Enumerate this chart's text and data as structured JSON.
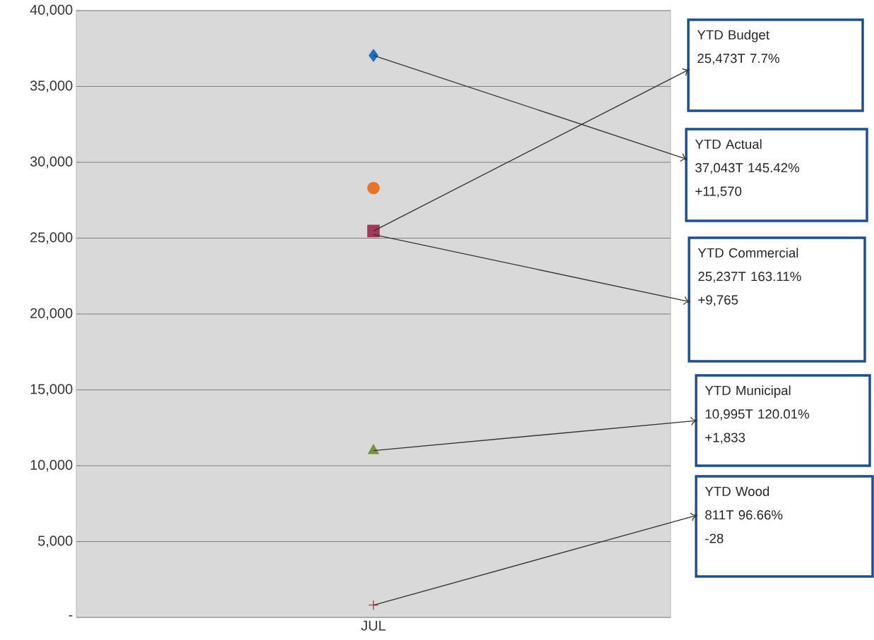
{
  "chart_data": {
    "type": "scatter",
    "categories": [
      "JUL"
    ],
    "series": [
      {
        "color": "#1f6fc0",
        "marker": "diamond",
        "values": [
          37043
        ]
      },
      {
        "color": "#e8742a",
        "marker": "circle",
        "values": [
          28300
        ]
      },
      {
        "color": "#a0395a",
        "marker": "square",
        "values": [
          25473
        ]
      },
      {
        "color": "#77933c",
        "marker": "triangle",
        "values": [
          10995
        ]
      },
      {
        "color": "#c0504d",
        "marker": "cross",
        "values": [
          811
        ]
      }
    ],
    "ylim": [
      0,
      40000
    ],
    "yticks": [
      {
        "value": 0,
        "label": "-"
      },
      {
        "value": 5000,
        "label": "5,000"
      },
      {
        "value": 10000,
        "label": "10,000"
      },
      {
        "value": 15000,
        "label": "15,000"
      },
      {
        "value": 20000,
        "label": "20,000"
      },
      {
        "value": 25000,
        "label": "25,000"
      },
      {
        "value": 30000,
        "label": "30,000"
      },
      {
        "value": 35000,
        "label": "35,000"
      },
      {
        "value": 40000,
        "label": "40,000"
      }
    ],
    "grid": "y",
    "annotations": [
      {
        "text": "YTD Budget 25,473T 7.7%",
        "x": "JUL",
        "y": 25473
      },
      {
        "text": "YTD Actual 37,043T 145.42% +11,570",
        "x": "JUL",
        "y": 37043
      },
      {
        "text": "YTD Commercial 25,237T 163.11% +9,765",
        "x": "JUL",
        "y": 25237
      },
      {
        "text": "YTD Municipal 10,995T 120.01% +1,833",
        "x": "JUL",
        "y": 10995
      },
      {
        "text": "YTD Wood 811T 96.66% -28",
        "x": "JUL",
        "y": 811
      }
    ]
  }
}
